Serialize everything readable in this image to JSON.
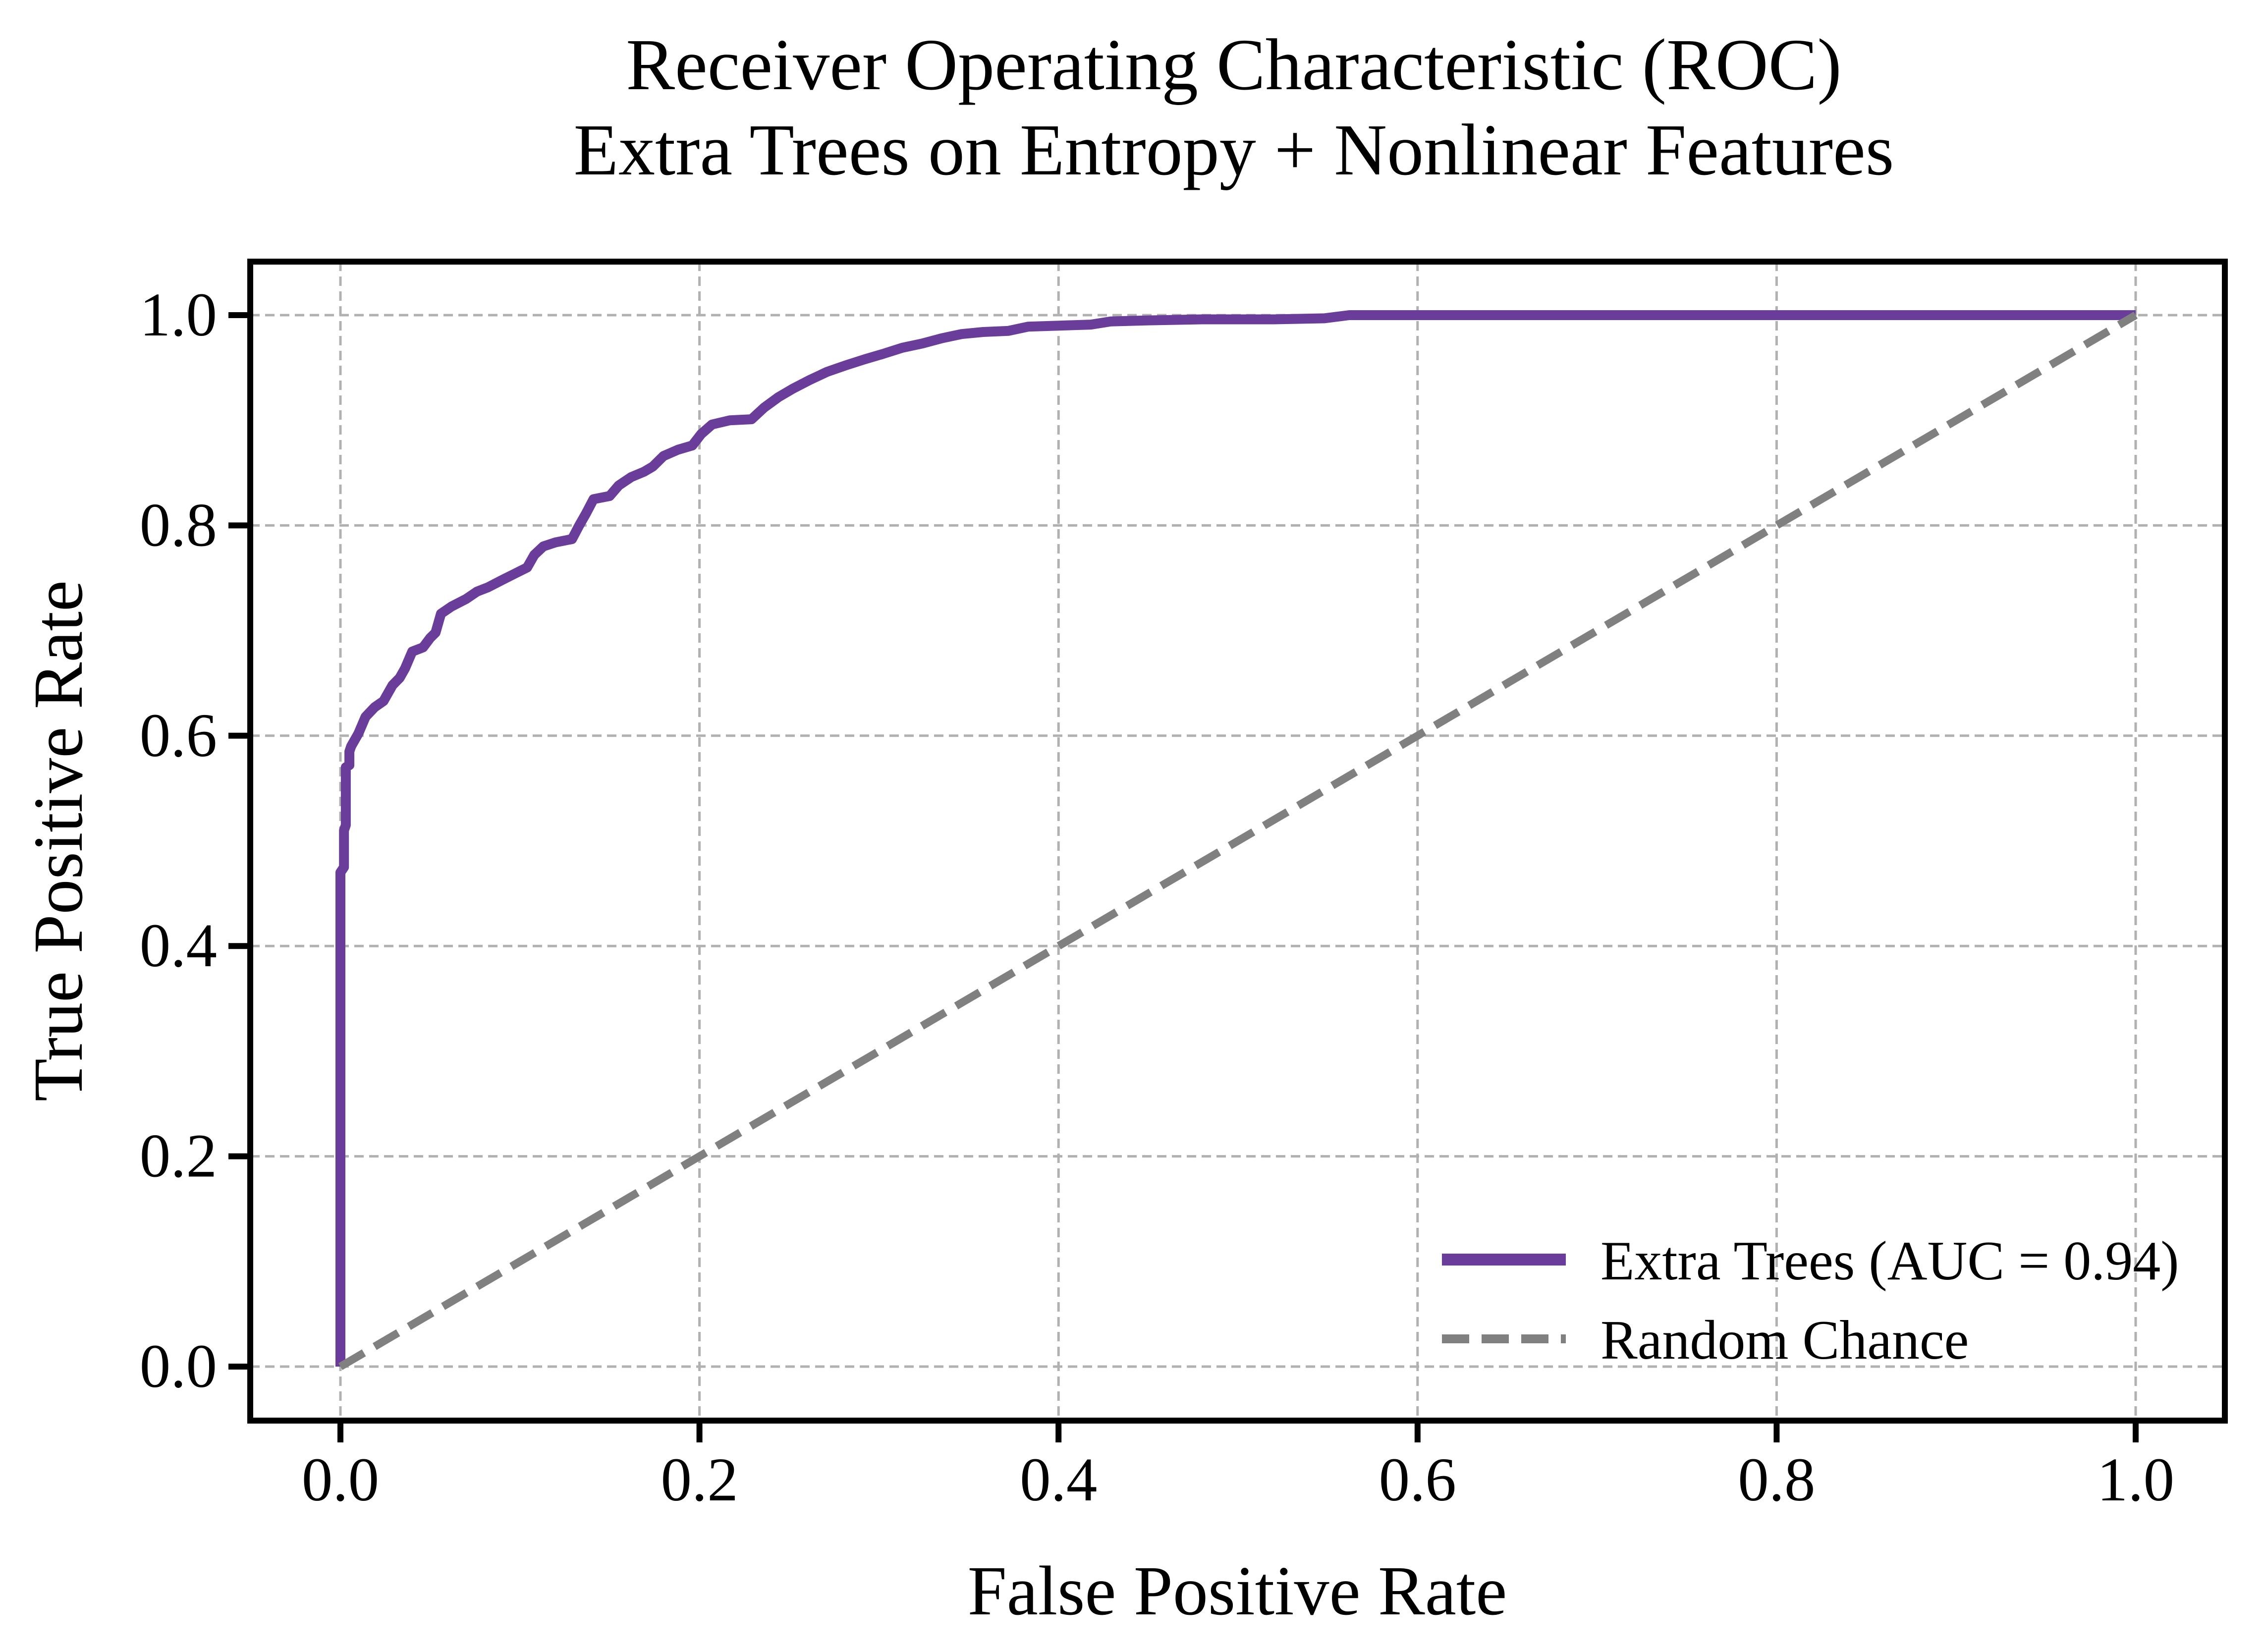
{
  "chart_data": {
    "type": "line",
    "title_line1": "Receiver Operating Characteristic (ROC)",
    "title_line2": "Extra Trees on Entropy + Nonlinear Features",
    "xlabel": "False Positive Rate",
    "ylabel": "True Positive Rate",
    "xlim": [
      -0.05,
      1.05
    ],
    "ylim": [
      -0.05,
      1.05
    ],
    "x_ticks": [
      0.0,
      0.2,
      0.4,
      0.6,
      0.8,
      1.0
    ],
    "y_ticks": [
      0.0,
      0.2,
      0.4,
      0.6,
      0.8,
      1.0
    ],
    "x_tick_labels": [
      "0.0",
      "0.2",
      "0.4",
      "0.6",
      "0.8",
      "1.0"
    ],
    "y_tick_labels": [
      "0.0",
      "0.2",
      "0.4",
      "0.6",
      "0.8",
      "1.0"
    ],
    "grid": true,
    "grid_color": "#b1b1b1",
    "background_color": "#ffffff",
    "spine_color": "#000000",
    "legend_position": "lower right",
    "series": [
      {
        "id": "extra_trees",
        "name": "Extra Trees (AUC = 0.94)",
        "auc": 0.94,
        "color": "#6a3d9a",
        "style": "solid",
        "points": [
          [
            0.0,
            0.0
          ],
          [
            0.0,
            0.47
          ],
          [
            0.002,
            0.475
          ],
          [
            0.002,
            0.51
          ],
          [
            0.003,
            0.515
          ],
          [
            0.003,
            0.57
          ],
          [
            0.005,
            0.572
          ],
          [
            0.005,
            0.585
          ],
          [
            0.006,
            0.59
          ],
          [
            0.01,
            0.602
          ],
          [
            0.014,
            0.618
          ],
          [
            0.019,
            0.627
          ],
          [
            0.024,
            0.633
          ],
          [
            0.029,
            0.648
          ],
          [
            0.033,
            0.655
          ],
          [
            0.036,
            0.664
          ],
          [
            0.04,
            0.68
          ],
          [
            0.046,
            0.684
          ],
          [
            0.05,
            0.693
          ],
          [
            0.053,
            0.698
          ],
          [
            0.056,
            0.716
          ],
          [
            0.062,
            0.723
          ],
          [
            0.07,
            0.73
          ],
          [
            0.076,
            0.737
          ],
          [
            0.082,
            0.741
          ],
          [
            0.09,
            0.748
          ],
          [
            0.097,
            0.754
          ],
          [
            0.104,
            0.76
          ],
          [
            0.108,
            0.772
          ],
          [
            0.113,
            0.78
          ],
          [
            0.12,
            0.784
          ],
          [
            0.129,
            0.787
          ],
          [
            0.133,
            0.8
          ],
          [
            0.137,
            0.812
          ],
          [
            0.141,
            0.825
          ],
          [
            0.15,
            0.828
          ],
          [
            0.155,
            0.838
          ],
          [
            0.162,
            0.846
          ],
          [
            0.169,
            0.851
          ],
          [
            0.174,
            0.856
          ],
          [
            0.18,
            0.866
          ],
          [
            0.188,
            0.872
          ],
          [
            0.196,
            0.876
          ],
          [
            0.201,
            0.887
          ],
          [
            0.207,
            0.896
          ],
          [
            0.217,
            0.9
          ],
          [
            0.229,
            0.901
          ],
          [
            0.236,
            0.912
          ],
          [
            0.244,
            0.922
          ],
          [
            0.252,
            0.93
          ],
          [
            0.261,
            0.938
          ],
          [
            0.271,
            0.946
          ],
          [
            0.281,
            0.952
          ],
          [
            0.292,
            0.958
          ],
          [
            0.302,
            0.963
          ],
          [
            0.313,
            0.969
          ],
          [
            0.324,
            0.973
          ],
          [
            0.335,
            0.978
          ],
          [
            0.346,
            0.982
          ],
          [
            0.358,
            0.984
          ],
          [
            0.372,
            0.985
          ],
          [
            0.383,
            0.989
          ],
          [
            0.4,
            0.99
          ],
          [
            0.418,
            0.991
          ],
          [
            0.429,
            0.994
          ],
          [
            0.45,
            0.995
          ],
          [
            0.48,
            0.996
          ],
          [
            0.52,
            0.996
          ],
          [
            0.548,
            0.997
          ],
          [
            0.562,
            1.0
          ],
          [
            0.65,
            1.0
          ],
          [
            0.8,
            1.0
          ],
          [
            1.0,
            1.0
          ]
        ]
      },
      {
        "id": "random_chance",
        "name": "Random Chance",
        "color": "#808080",
        "style": "dashed",
        "points": [
          [
            0.0,
            0.0
          ],
          [
            1.0,
            1.0
          ]
        ]
      }
    ]
  }
}
